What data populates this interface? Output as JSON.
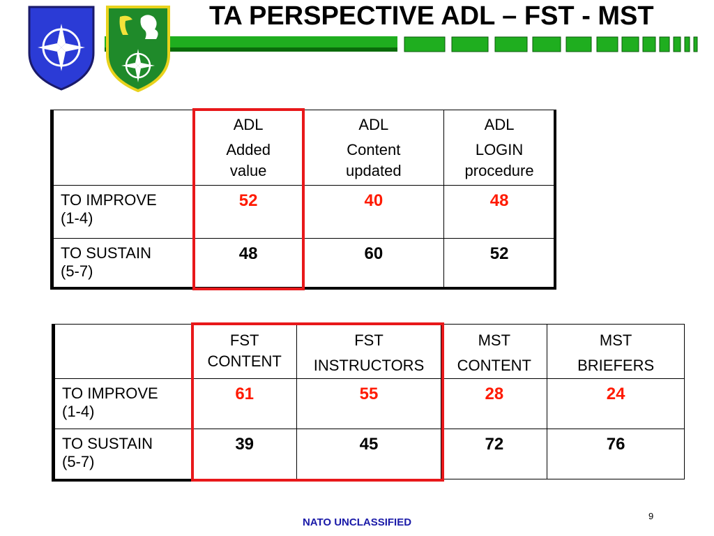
{
  "slide": {
    "title": "TA PERSPECTIVE ADL – FST - MST",
    "footer": "NATO UNCLASSIFIED",
    "page_number": "9"
  },
  "colors": {
    "accent_red": "#e8181a",
    "value_red": "#ff1a00",
    "stripe_green": "#1fae1f",
    "footer_blue": "#1a1aa8"
  },
  "badges": {
    "left": "nato-shield-blue-icon",
    "right": "green-shield-lion-compass-icon"
  },
  "table1": {
    "columns": [
      {
        "line1": "ADL",
        "line2": "Added",
        "line3": "value"
      },
      {
        "line1": "ADL",
        "line2": "Content",
        "line3": "updated"
      },
      {
        "line1": "ADL",
        "line2": "LOGIN",
        "line3": "procedure"
      }
    ],
    "rows": [
      {
        "label1": "TO IMPROVE",
        "label2": "(1-4)",
        "values": [
          "52",
          "40",
          "48"
        ]
      },
      {
        "label1": "TO SUSTAIN",
        "label2": "(5-7)",
        "values": [
          "48",
          "60",
          "52"
        ]
      }
    ]
  },
  "table2": {
    "columns": [
      {
        "line1": "FST",
        "line2": "CONTENT"
      },
      {
        "line1": "FST",
        "line2": "INSTRUCTORS"
      },
      {
        "line1": "MST",
        "line2": "CONTENT"
      },
      {
        "line1": "MST",
        "line2": "BRIEFERS"
      }
    ],
    "rows": [
      {
        "label1": "TO IMPROVE",
        "label2": "(1-4)",
        "values": [
          "61",
          "55",
          "28",
          "24"
        ]
      },
      {
        "label1": "TO SUSTAIN",
        "label2": "(5-7)",
        "values": [
          "39",
          "45",
          "72",
          "76"
        ]
      }
    ]
  }
}
